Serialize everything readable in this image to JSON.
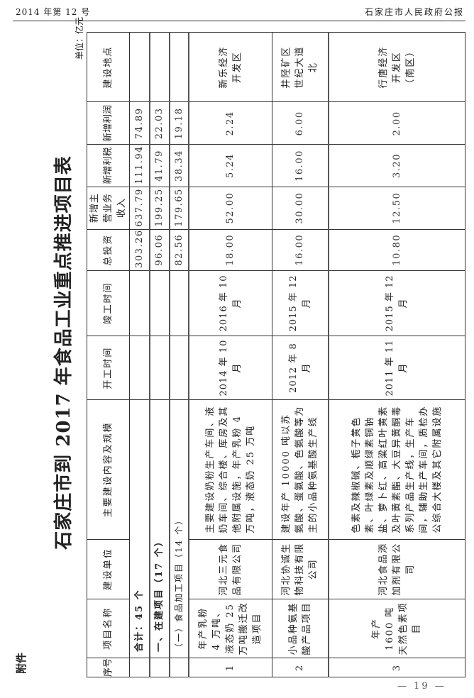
{
  "header": {
    "issue": "2014 年第 12 号",
    "publication": "石家庄市人民政府公报"
  },
  "attachment_label": "附件",
  "title": "石家庄市到 2017 年食品工业重点推进项目表",
  "unit": "单位：亿元",
  "page_number": "— 19 —",
  "table": {
    "columns": [
      "序号",
      "项目名称",
      "建设单位",
      "主要建设内容及规模",
      "开工时间",
      "竣工时间",
      "总投资",
      "新增主营业务收入",
      "新增利税",
      "新增利润",
      "建设地点"
    ],
    "total": {
      "label": "合计：45 个",
      "investment": "303.26",
      "revenue": "637.79",
      "tax": "111.94",
      "profit": "74.89"
    },
    "section": {
      "label": "一、在建项目（17 个）",
      "investment": "96.06",
      "revenue": "199.25",
      "tax": "41.79",
      "profit": "22.03"
    },
    "subsection": {
      "label": "（一）食品加工项目（14 个）",
      "investment": "82.56",
      "revenue": "179.65",
      "tax": "38.34",
      "profit": "19.18"
    },
    "rows": [
      {
        "no": "1",
        "name": "年产乳粉 4 万吨、液态奶 25 万吨搬迁改造项目",
        "unit": "河北三元食品有限公司",
        "content": "主要建设奶粉生产车间、液奶车间、综合楼、库房及其他附属设施，年产乳粉 4 万吨，液态奶 25 万吨",
        "start": "2014 年 10 月",
        "end": "2016 年 10 月",
        "investment": "18.00",
        "revenue": "52.00",
        "tax": "5.24",
        "profit": "2.24",
        "location": "新乐经济开发区"
      },
      {
        "no": "2",
        "name": "小品种氨基酸产品项目",
        "unit": "河北协诚生物科技有限公司",
        "content": "建设年产 10000 吨以苏氨酸、蛋氨酸、色氨酸等为主的小品种氨基酸生产线",
        "start": "2012 年 8 月",
        "end": "2015 年 12 月",
        "investment": "16.00",
        "revenue": "30.00",
        "tax": "16.00",
        "profit": "6.00",
        "location": "井陉矿区世纪大道北"
      },
      {
        "no": "3",
        "name": "年产 1600 吨天然色素项目",
        "unit": "河北食品添加剂有限公司",
        "content": "色素及辣椒碱、栀子黄色素、叶绿素及顺绿素铜钠盐、萝卜红、高粱红叶黄素及叶黄素酯、大豆异黄酮毒系列产品生产线，生产车间，辅助生产车间，质检办公综合大楼及其它附属设施",
        "start": "2011 年 11 月",
        "end": "2015 年 12 月",
        "investment": "10.80",
        "revenue": "12.50",
        "tax": "3.20",
        "profit": "2.00",
        "location": "行唐经济开发区（南区）"
      }
    ]
  }
}
